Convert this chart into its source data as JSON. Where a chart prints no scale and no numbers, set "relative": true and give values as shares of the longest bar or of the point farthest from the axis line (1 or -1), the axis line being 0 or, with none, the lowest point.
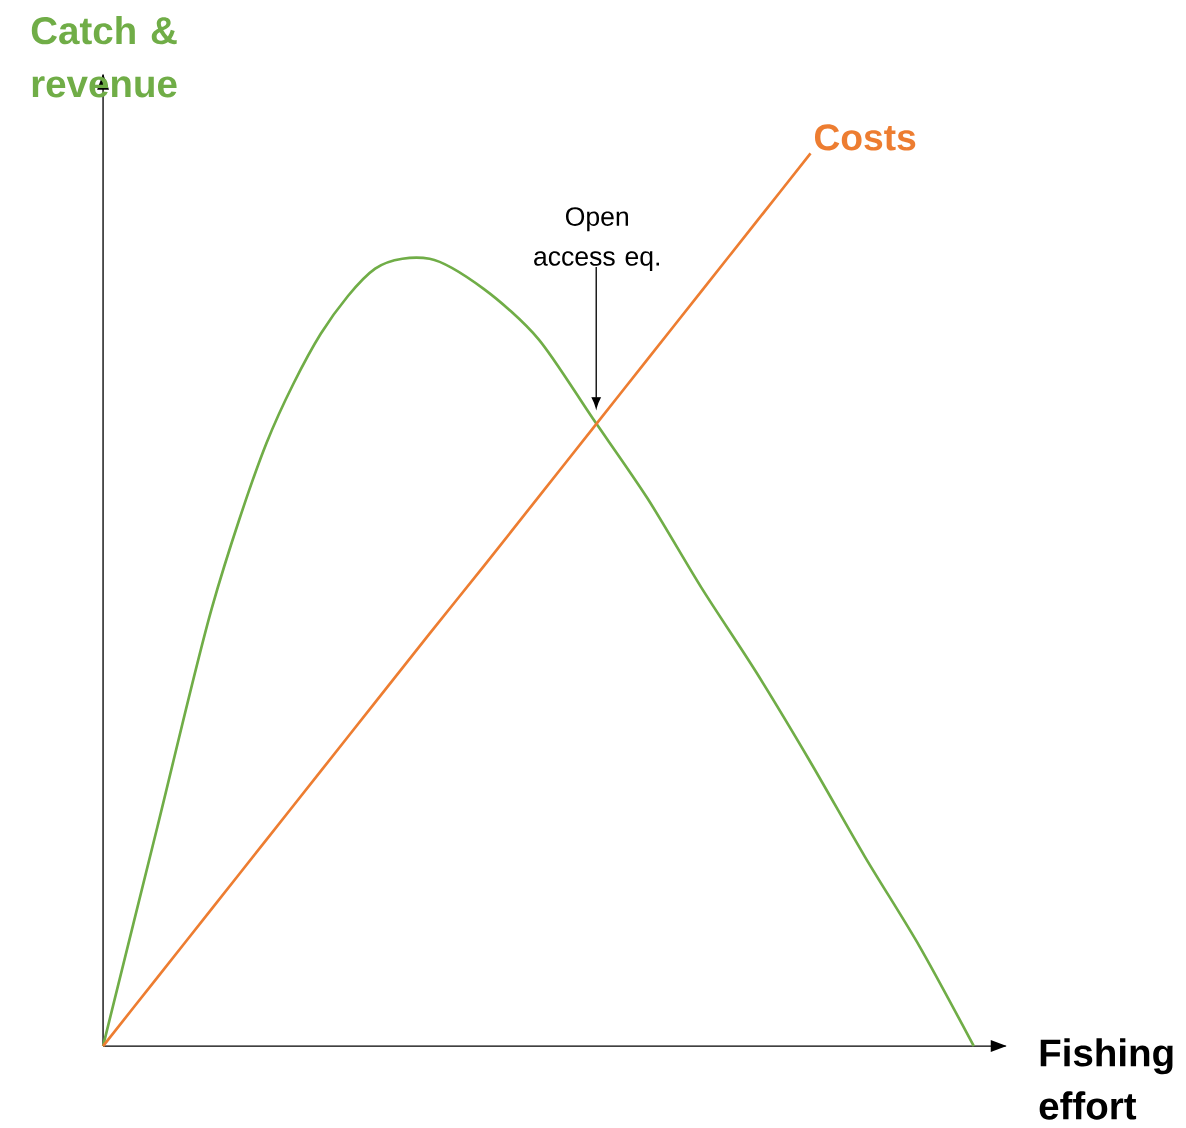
{
  "chart_data": {
    "type": "line",
    "relative": true,
    "xlabel": "Fishing effort",
    "ylabel": "Catch & revenue",
    "categories": [
      null,
      null,
      null,
      null,
      null,
      null,
      null,
      null,
      null,
      null,
      null,
      null,
      null,
      null,
      null,
      null,
      null
    ],
    "series": [
      {
        "color": "#70ad47",
        "values": [
          0,
          0.246,
          0.491,
          0.675,
          0.798,
          0.871,
          0.882,
          0.848,
          0.792,
          0.703,
          0.614,
          0.513,
          0.419,
          0.318,
          0.212,
          0.112,
          0
        ]
      },
      {
        "name": "Costs",
        "color": "#ed7d31",
        "values": [
          0,
          0.077,
          0.154,
          0.231,
          0.308,
          0.385,
          0.462,
          0.538,
          0.615,
          0.692,
          0.769,
          0.846,
          0.923,
          1.0,
          null,
          null,
          null
        ]
      }
    ],
    "annotations": [
      "Open access eq."
    ]
  }
}
